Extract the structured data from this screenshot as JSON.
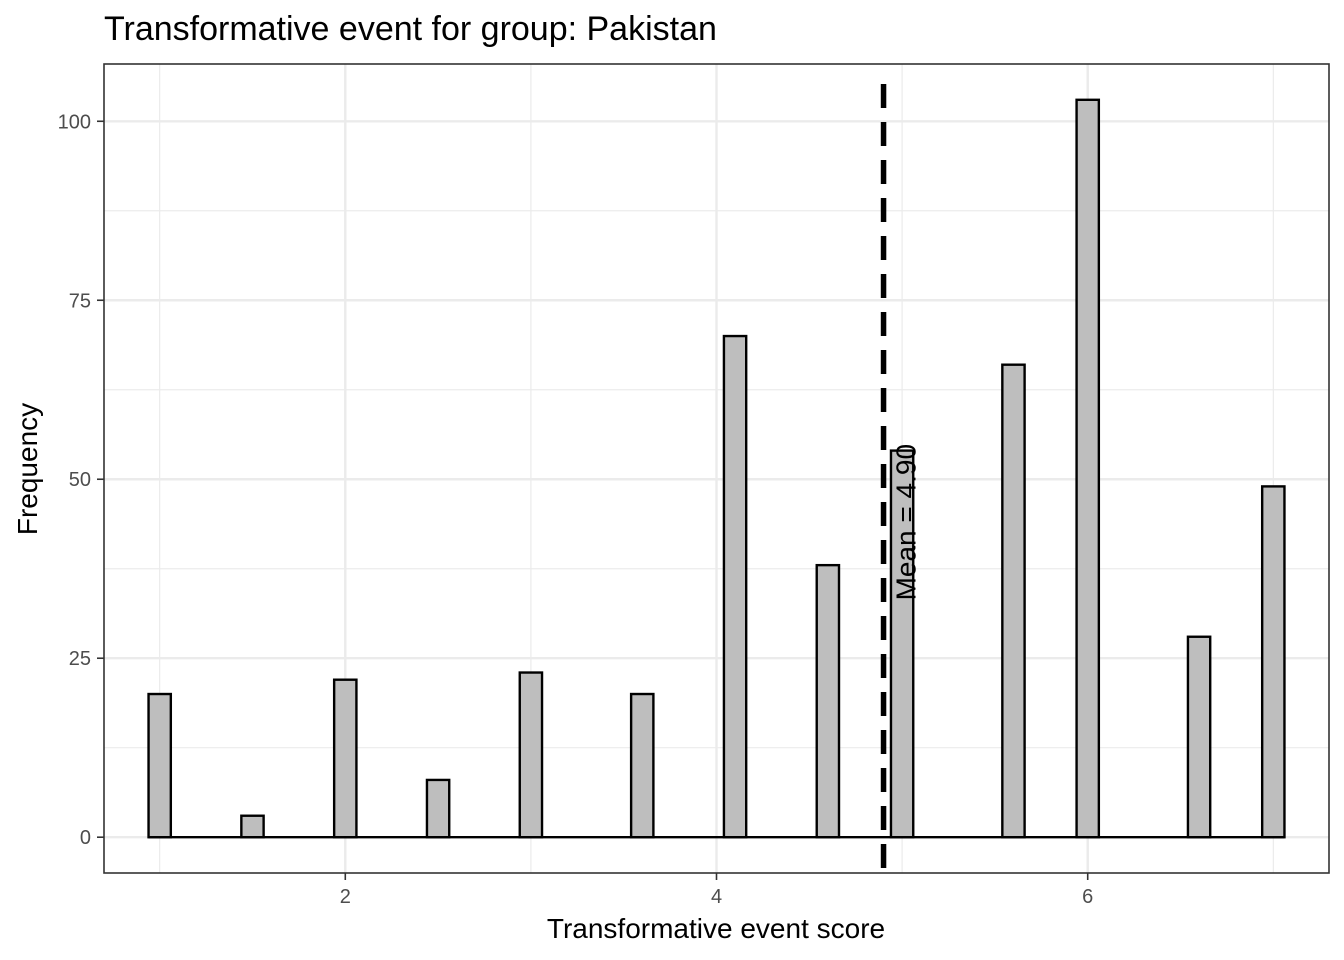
{
  "chart_data": {
    "type": "bar",
    "title": "Transformative event for group: Pakistan",
    "xlabel": "Transformative event score",
    "ylabel": "Frequency",
    "x": [
      1.0,
      1.5,
      2.0,
      2.5,
      3.0,
      3.6,
      4.1,
      4.6,
      5.0,
      5.6,
      6.0,
      6.6,
      7.0
    ],
    "values": [
      20,
      3,
      22,
      8,
      23,
      20,
      70,
      38,
      54,
      66,
      103,
      28,
      49
    ],
    "bin_width": 0.12,
    "xlim": [
      0.7,
      7.3
    ],
    "ylim": [
      -5,
      108
    ],
    "x_ticks": [
      2,
      4,
      6
    ],
    "x_tick_labels": [
      "2",
      "4",
      "6"
    ],
    "y_ticks": [
      0,
      25,
      50,
      75,
      100
    ],
    "y_tick_labels": [
      "0",
      "25",
      "50",
      "75",
      "100"
    ],
    "grid": true,
    "mean_line": {
      "value": 4.9,
      "label": "Mean = 4.90",
      "style": "dashed"
    },
    "colors": {
      "bar_fill": "#bebebe",
      "bar_stroke": "#000000",
      "grid": "#ebebeb",
      "panel_border": "#333333",
      "mean_line": "#000000"
    }
  }
}
